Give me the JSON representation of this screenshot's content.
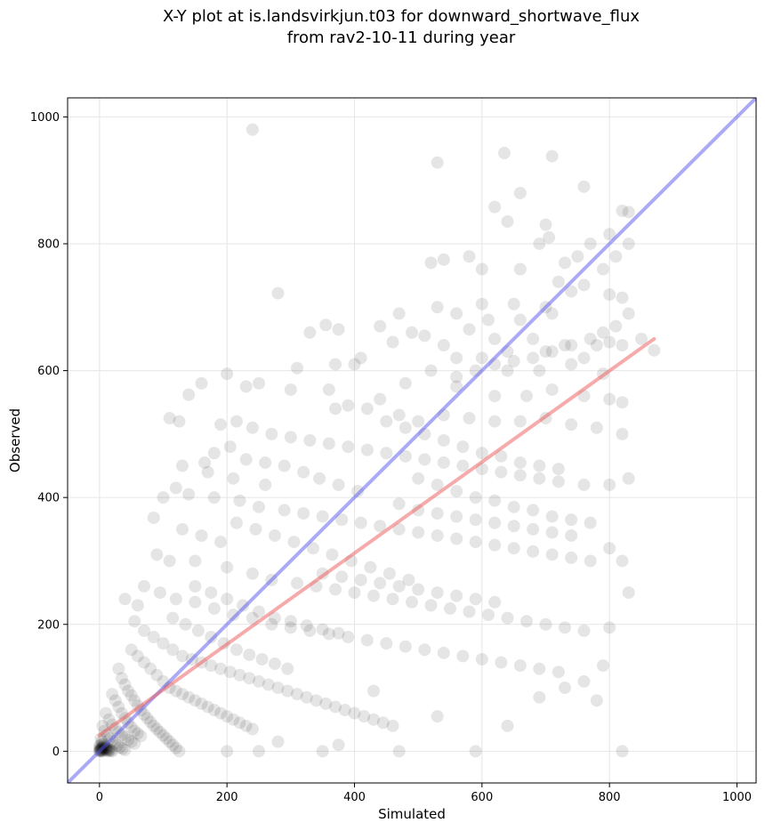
{
  "chart_data": {
    "type": "scatter",
    "title_line1": "X-Y plot at is.landsvirkjun.t03 for downward_shortwave_flux",
    "title_line2": "from rav2-10-11 during year",
    "xlabel": "Simulated",
    "ylabel": "Observed",
    "xlim": [
      -50,
      1030
    ],
    "ylim": [
      -50,
      1030
    ],
    "xticks": [
      0,
      200,
      400,
      600,
      800,
      1000
    ],
    "yticks": [
      0,
      200,
      400,
      600,
      800,
      1000
    ],
    "grid": true,
    "points_color": "#000000",
    "identity_line": {
      "from": [
        -50,
        -50
      ],
      "to": [
        1030,
        1030
      ],
      "color": "#5555ee"
    },
    "regression_line": {
      "from": [
        0,
        25
      ],
      "to": [
        870,
        650
      ],
      "color": "#ee5555"
    },
    "points": [
      [
        240,
        980
      ],
      [
        530,
        928
      ],
      [
        635,
        943
      ],
      [
        710,
        938
      ],
      [
        660,
        880
      ],
      [
        760,
        890
      ],
      [
        620,
        858
      ],
      [
        820,
        852
      ],
      [
        830,
        850
      ],
      [
        640,
        835
      ],
      [
        700,
        830
      ],
      [
        690,
        800
      ],
      [
        800,
        815
      ],
      [
        770,
        800
      ],
      [
        830,
        800
      ],
      [
        750,
        780
      ],
      [
        705,
        810
      ],
      [
        730,
        770
      ],
      [
        790,
        760
      ],
      [
        810,
        780
      ],
      [
        600,
        760
      ],
      [
        660,
        760
      ],
      [
        720,
        740
      ],
      [
        760,
        735
      ],
      [
        540,
        775
      ],
      [
        580,
        780
      ],
      [
        520,
        770
      ],
      [
        280,
        722
      ],
      [
        530,
        700
      ],
      [
        650,
        705
      ],
      [
        600,
        705
      ],
      [
        700,
        700
      ],
      [
        660,
        680
      ],
      [
        710,
        690
      ],
      [
        740,
        725
      ],
      [
        800,
        720
      ],
      [
        820,
        715
      ],
      [
        830,
        690
      ],
      [
        560,
        690
      ],
      [
        610,
        680
      ],
      [
        470,
        690
      ],
      [
        490,
        660
      ],
      [
        580,
        665
      ],
      [
        620,
        650
      ],
      [
        680,
        650
      ],
      [
        730,
        640
      ],
      [
        780,
        640
      ],
      [
        800,
        645
      ],
      [
        820,
        640
      ],
      [
        870,
        632
      ],
      [
        440,
        670
      ],
      [
        355,
        672
      ],
      [
        375,
        665
      ],
      [
        330,
        660
      ],
      [
        460,
        645
      ],
      [
        510,
        655
      ],
      [
        540,
        640
      ],
      [
        560,
        620
      ],
      [
        600,
        620
      ],
      [
        640,
        630
      ],
      [
        700,
        630
      ],
      [
        760,
        620
      ],
      [
        850,
        650
      ],
      [
        640,
        600
      ],
      [
        690,
        600
      ],
      [
        740,
        610
      ],
      [
        790,
        595
      ],
      [
        410,
        620
      ],
      [
        400,
        610
      ],
      [
        370,
        610
      ],
      [
        310,
        604
      ],
      [
        300,
        570
      ],
      [
        360,
        570
      ],
      [
        160,
        580
      ],
      [
        140,
        562
      ],
      [
        200,
        595
      ],
      [
        250,
        580
      ],
      [
        230,
        575
      ],
      [
        480,
        580
      ],
      [
        520,
        600
      ],
      [
        560,
        575
      ],
      [
        620,
        560
      ],
      [
        670,
        560
      ],
      [
        710,
        570
      ],
      [
        760,
        560
      ],
      [
        800,
        555
      ],
      [
        820,
        550
      ],
      [
        440,
        555
      ],
      [
        420,
        540
      ],
      [
        390,
        545
      ],
      [
        370,
        540
      ],
      [
        470,
        530
      ],
      [
        500,
        520
      ],
      [
        540,
        530
      ],
      [
        580,
        525
      ],
      [
        620,
        520
      ],
      [
        660,
        520
      ],
      [
        700,
        525
      ],
      [
        740,
        515
      ],
      [
        780,
        510
      ],
      [
        820,
        500
      ],
      [
        110,
        525
      ],
      [
        125,
        520
      ],
      [
        190,
        515
      ],
      [
        215,
        520
      ],
      [
        240,
        510
      ],
      [
        270,
        500
      ],
      [
        300,
        495
      ],
      [
        330,
        490
      ],
      [
        360,
        485
      ],
      [
        390,
        480
      ],
      [
        420,
        475
      ],
      [
        450,
        470
      ],
      [
        480,
        465
      ],
      [
        510,
        460
      ],
      [
        540,
        455
      ],
      [
        570,
        450
      ],
      [
        600,
        445
      ],
      [
        630,
        440
      ],
      [
        660,
        435
      ],
      [
        690,
        430
      ],
      [
        720,
        425
      ],
      [
        760,
        420
      ],
      [
        800,
        420
      ],
      [
        830,
        430
      ],
      [
        130,
        450
      ],
      [
        170,
        440
      ],
      [
        210,
        430
      ],
      [
        260,
        420
      ],
      [
        120,
        415
      ],
      [
        140,
        405
      ],
      [
        100,
        400
      ],
      [
        180,
        400
      ],
      [
        220,
        395
      ],
      [
        250,
        385
      ],
      [
        290,
        380
      ],
      [
        320,
        375
      ],
      [
        350,
        370
      ],
      [
        380,
        365
      ],
      [
        410,
        360
      ],
      [
        440,
        355
      ],
      [
        470,
        350
      ],
      [
        500,
        345
      ],
      [
        530,
        340
      ],
      [
        560,
        335
      ],
      [
        590,
        330
      ],
      [
        620,
        325
      ],
      [
        650,
        320
      ],
      [
        680,
        315
      ],
      [
        710,
        310
      ],
      [
        740,
        305
      ],
      [
        770,
        300
      ],
      [
        800,
        320
      ],
      [
        820,
        300
      ],
      [
        85,
        368
      ],
      [
        130,
        350
      ],
      [
        160,
        340
      ],
      [
        190,
        330
      ],
      [
        90,
        310
      ],
      [
        110,
        300
      ],
      [
        150,
        300
      ],
      [
        200,
        290
      ],
      [
        240,
        280
      ],
      [
        270,
        270
      ],
      [
        310,
        265
      ],
      [
        340,
        260
      ],
      [
        370,
        255
      ],
      [
        400,
        250
      ],
      [
        430,
        245
      ],
      [
        460,
        240
      ],
      [
        490,
        235
      ],
      [
        520,
        230
      ],
      [
        550,
        225
      ],
      [
        580,
        220
      ],
      [
        610,
        215
      ],
      [
        640,
        210
      ],
      [
        670,
        205
      ],
      [
        700,
        200
      ],
      [
        730,
        195
      ],
      [
        760,
        190
      ],
      [
        800,
        195
      ],
      [
        830,
        250
      ],
      [
        70,
        260
      ],
      [
        95,
        250
      ],
      [
        120,
        240
      ],
      [
        150,
        235
      ],
      [
        180,
        225
      ],
      [
        210,
        215
      ],
      [
        240,
        210
      ],
      [
        270,
        200
      ],
      [
        300,
        195
      ],
      [
        330,
        190
      ],
      [
        360,
        185
      ],
      [
        390,
        180
      ],
      [
        420,
        175
      ],
      [
        450,
        170
      ],
      [
        480,
        165
      ],
      [
        510,
        160
      ],
      [
        540,
        155
      ],
      [
        570,
        150
      ],
      [
        600,
        145
      ],
      [
        630,
        140
      ],
      [
        660,
        135
      ],
      [
        690,
        130
      ],
      [
        720,
        125
      ],
      [
        790,
        135
      ],
      [
        760,
        110
      ],
      [
        780,
        80
      ],
      [
        820,
        0
      ],
      [
        730,
        100
      ],
      [
        690,
        85
      ],
      [
        640,
        40
      ],
      [
        590,
        0
      ],
      [
        530,
        55
      ],
      [
        470,
        0
      ],
      [
        430,
        95
      ],
      [
        350,
        0
      ],
      [
        375,
        10
      ],
      [
        280,
        15
      ],
      [
        250,
        0
      ],
      [
        200,
        0
      ],
      [
        60,
        230
      ],
      [
        40,
        240
      ],
      [
        55,
        205
      ],
      [
        70,
        190
      ],
      [
        85,
        180
      ],
      [
        100,
        170
      ],
      [
        115,
        160
      ],
      [
        130,
        150
      ],
      [
        145,
        145
      ],
      [
        160,
        140
      ],
      [
        175,
        135
      ],
      [
        190,
        130
      ],
      [
        205,
        125
      ],
      [
        220,
        120
      ],
      [
        235,
        115
      ],
      [
        250,
        110
      ],
      [
        265,
        105
      ],
      [
        280,
        100
      ],
      [
        295,
        95
      ],
      [
        310,
        90
      ],
      [
        325,
        85
      ],
      [
        340,
        80
      ],
      [
        355,
        75
      ],
      [
        370,
        70
      ],
      [
        385,
        65
      ],
      [
        400,
        60
      ],
      [
        415,
        55
      ],
      [
        430,
        50
      ],
      [
        445,
        45
      ],
      [
        460,
        40
      ],
      [
        50,
        160
      ],
      [
        60,
        150
      ],
      [
        70,
        140
      ],
      [
        80,
        130
      ],
      [
        90,
        120
      ],
      [
        100,
        110
      ],
      [
        110,
        100
      ],
      [
        120,
        95
      ],
      [
        130,
        90
      ],
      [
        140,
        85
      ],
      [
        150,
        80
      ],
      [
        160,
        75
      ],
      [
        170,
        70
      ],
      [
        180,
        65
      ],
      [
        190,
        60
      ],
      [
        200,
        55
      ],
      [
        210,
        50
      ],
      [
        220,
        45
      ],
      [
        230,
        40
      ],
      [
        240,
        35
      ],
      [
        30,
        130
      ],
      [
        35,
        115
      ],
      [
        40,
        105
      ],
      [
        45,
        95
      ],
      [
        50,
        88
      ],
      [
        55,
        80
      ],
      [
        60,
        72
      ],
      [
        65,
        65
      ],
      [
        70,
        58
      ],
      [
        75,
        52
      ],
      [
        80,
        46
      ],
      [
        85,
        40
      ],
      [
        90,
        35
      ],
      [
        95,
        30
      ],
      [
        100,
        25
      ],
      [
        105,
        20
      ],
      [
        110,
        15
      ],
      [
        115,
        10
      ],
      [
        120,
        5
      ],
      [
        125,
        0
      ],
      [
        20,
        90
      ],
      [
        25,
        80
      ],
      [
        30,
        70
      ],
      [
        35,
        60
      ],
      [
        40,
        52
      ],
      [
        45,
        45
      ],
      [
        50,
        38
      ],
      [
        55,
        32
      ],
      [
        60,
        28
      ],
      [
        65,
        24
      ],
      [
        10,
        60
      ],
      [
        15,
        50
      ],
      [
        20,
        42
      ],
      [
        25,
        36
      ],
      [
        30,
        30
      ],
      [
        35,
        26
      ],
      [
        40,
        22
      ],
      [
        45,
        18
      ],
      [
        50,
        15
      ],
      [
        55,
        12
      ],
      [
        5,
        40
      ],
      [
        8,
        32
      ],
      [
        12,
        26
      ],
      [
        16,
        20
      ],
      [
        20,
        16
      ],
      [
        24,
        12
      ],
      [
        28,
        9
      ],
      [
        32,
        6
      ],
      [
        36,
        4
      ],
      [
        40,
        2
      ],
      [
        2,
        20
      ],
      [
        4,
        15
      ],
      [
        6,
        11
      ],
      [
        8,
        8
      ],
      [
        10,
        6
      ],
      [
        12,
        4
      ],
      [
        14,
        3
      ],
      [
        16,
        2
      ],
      [
        18,
        1
      ],
      [
        20,
        0
      ],
      [
        1,
        5
      ],
      [
        2,
        3
      ],
      [
        3,
        2
      ],
      [
        4,
        1
      ],
      [
        5,
        0
      ],
      [
        0,
        2
      ],
      [
        1,
        1
      ],
      [
        2,
        0
      ],
      [
        0,
        0
      ],
      [
        3,
        4
      ],
      [
        0,
        8
      ],
      [
        2,
        10
      ],
      [
        4,
        6
      ],
      [
        6,
        4
      ],
      [
        8,
        3
      ],
      [
        10,
        2
      ],
      [
        12,
        1
      ],
      [
        14,
        0
      ],
      [
        6,
        7
      ],
      [
        9,
        5
      ],
      [
        180,
        470
      ],
      [
        165,
        455
      ],
      [
        205,
        480
      ],
      [
        230,
        460
      ],
      [
        260,
        455
      ],
      [
        290,
        450
      ],
      [
        320,
        440
      ],
      [
        345,
        430
      ],
      [
        375,
        420
      ],
      [
        405,
        410
      ],
      [
        215,
        360
      ],
      [
        245,
        350
      ],
      [
        275,
        340
      ],
      [
        305,
        330
      ],
      [
        335,
        320
      ],
      [
        365,
        310
      ],
      [
        395,
        300
      ],
      [
        425,
        290
      ],
      [
        455,
        280
      ],
      [
        485,
        270
      ],
      [
        150,
        260
      ],
      [
        175,
        250
      ],
      [
        200,
        240
      ],
      [
        225,
        230
      ],
      [
        250,
        220
      ],
      [
        275,
        210
      ],
      [
        300,
        205
      ],
      [
        325,
        198
      ],
      [
        350,
        192
      ],
      [
        375,
        186
      ],
      [
        115,
        210
      ],
      [
        135,
        200
      ],
      [
        155,
        190
      ],
      [
        175,
        180
      ],
      [
        195,
        170
      ],
      [
        215,
        160
      ],
      [
        235,
        152
      ],
      [
        255,
        145
      ],
      [
        275,
        138
      ],
      [
        295,
        130
      ],
      [
        450,
        520
      ],
      [
        480,
        510
      ],
      [
        510,
        500
      ],
      [
        540,
        490
      ],
      [
        570,
        480
      ],
      [
        600,
        470
      ],
      [
        630,
        465
      ],
      [
        660,
        455
      ],
      [
        690,
        450
      ],
      [
        720,
        445
      ],
      [
        470,
        390
      ],
      [
        500,
        380
      ],
      [
        530,
        375
      ],
      [
        560,
        370
      ],
      [
        590,
        365
      ],
      [
        620,
        360
      ],
      [
        650,
        355
      ],
      [
        680,
        350
      ],
      [
        710,
        345
      ],
      [
        740,
        340
      ],
      [
        350,
        280
      ],
      [
        380,
        275
      ],
      [
        410,
        270
      ],
      [
        440,
        265
      ],
      [
        470,
        260
      ],
      [
        500,
        255
      ],
      [
        530,
        250
      ],
      [
        560,
        245
      ],
      [
        590,
        240
      ],
      [
        620,
        235
      ],
      [
        560,
        590
      ],
      [
        590,
        600
      ],
      [
        620,
        610
      ],
      [
        650,
        615
      ],
      [
        680,
        620
      ],
      [
        710,
        630
      ],
      [
        740,
        640
      ],
      [
        770,
        650
      ],
      [
        790,
        660
      ],
      [
        810,
        670
      ],
      [
        500,
        430
      ],
      [
        530,
        420
      ],
      [
        560,
        410
      ],
      [
        590,
        400
      ],
      [
        620,
        395
      ],
      [
        650,
        385
      ],
      [
        680,
        380
      ],
      [
        710,
        370
      ],
      [
        740,
        365
      ],
      [
        770,
        360
      ]
    ]
  }
}
